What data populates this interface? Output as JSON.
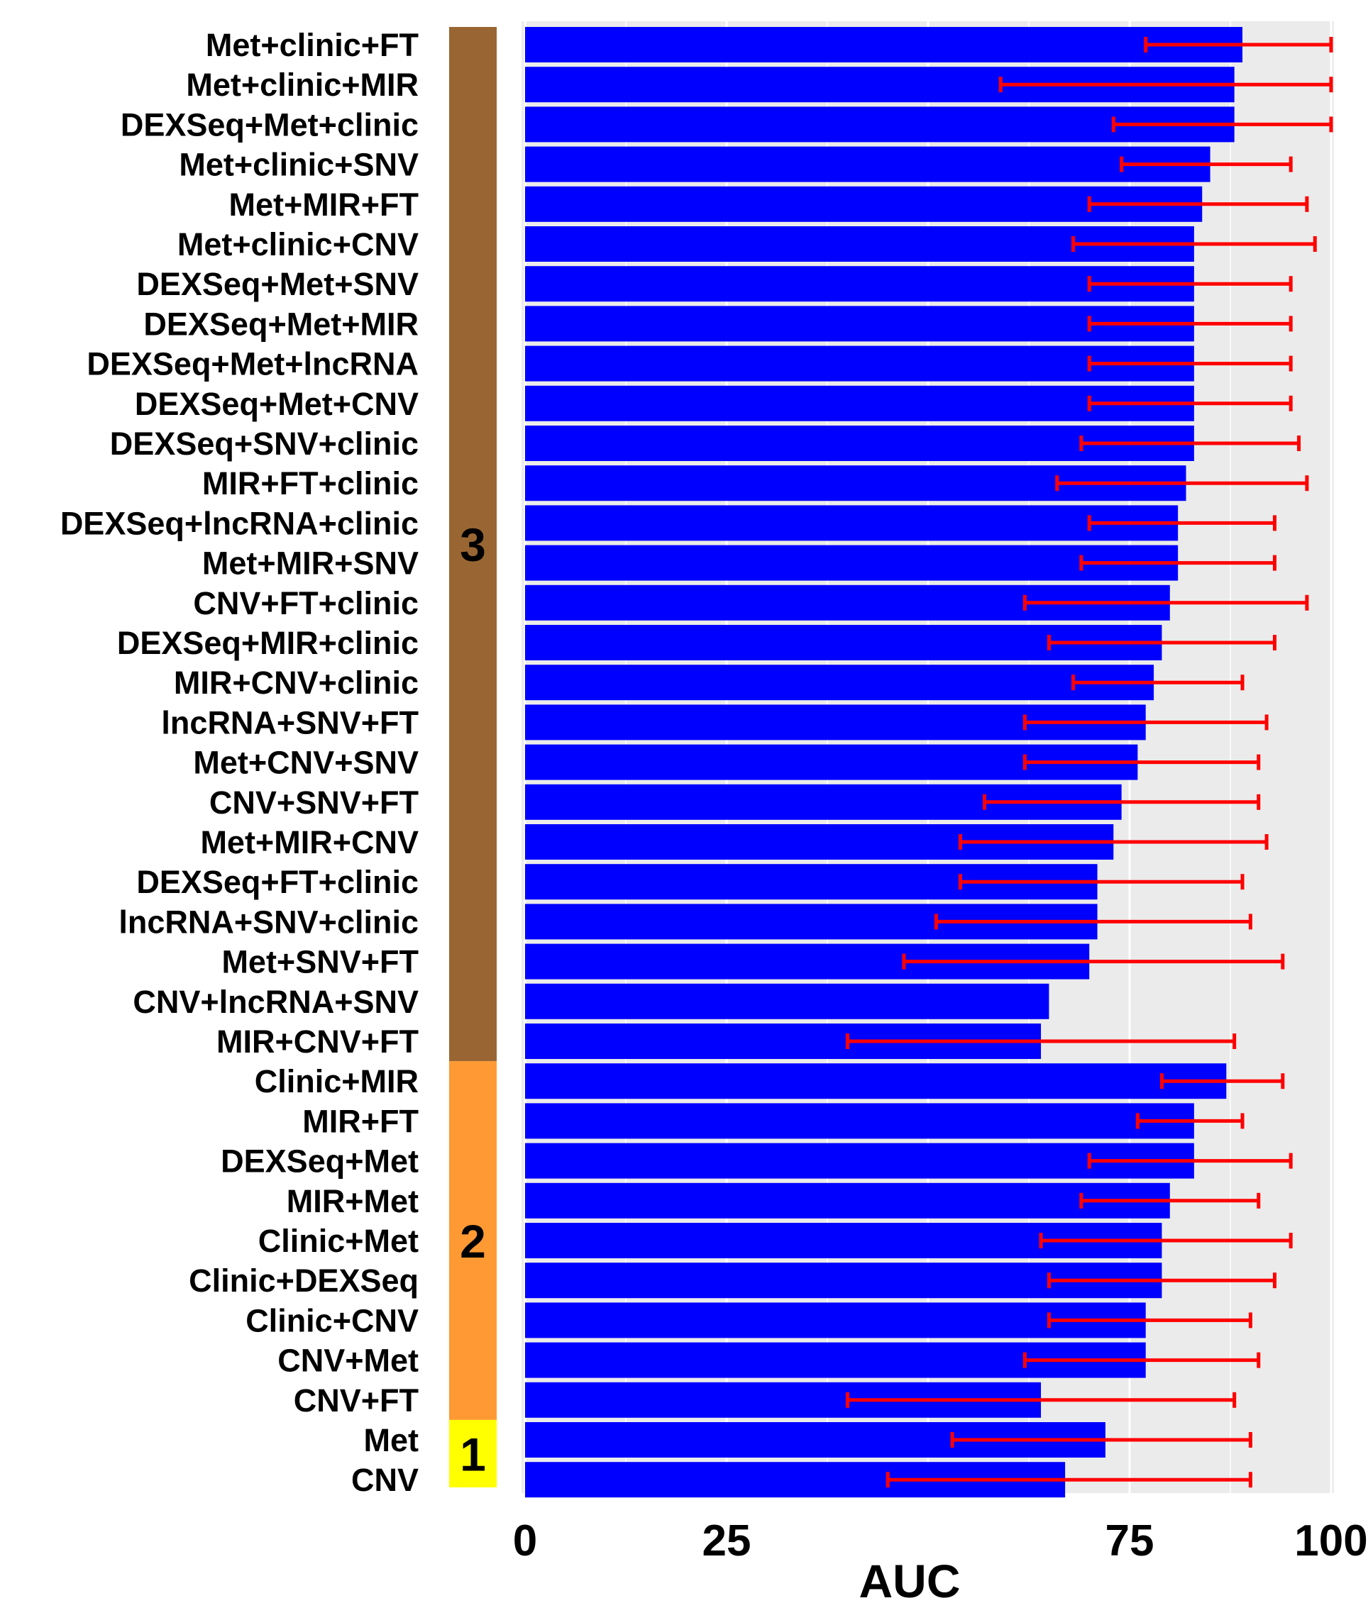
{
  "chart_data": {
    "type": "bar",
    "orientation": "horizontal",
    "title": "",
    "xlabel": "AUC",
    "ylabel": "",
    "xlim": [
      0,
      100
    ],
    "xticks": [
      {
        "value": 0,
        "label": "0"
      },
      {
        "value": 25,
        "label": "25"
      },
      {
        "value": 75,
        "label": "75"
      },
      {
        "value": 100,
        "label": "100"
      }
    ],
    "grid": true,
    "colors": {
      "bar": "#0000FF",
      "error": "#FF0000",
      "panel": "#EBEBEB",
      "grid": "#FFFFFF"
    },
    "groups": [
      {
        "label": "3",
        "color": "#996633",
        "count": 26
      },
      {
        "label": "2",
        "color": "#FF9933",
        "count": 9
      },
      {
        "label": "1",
        "color": "#FFFF00",
        "count": 2
      }
    ],
    "categories": [
      "Met+clinic+FT",
      "Met+clinic+MIR",
      "DEXSeq+Met+clinic",
      "Met+clinic+SNV",
      "Met+MIR+FT",
      "Met+clinic+CNV",
      "DEXSeq+Met+SNV",
      "DEXSeq+Met+MIR",
      "DEXSeq+Met+lncRNA",
      "DEXSeq+Met+CNV",
      "DEXSeq+SNV+clinic",
      "MIR+FT+clinic",
      "DEXSeq+lncRNA+clinic",
      "Met+MIR+SNV",
      "CNV+FT+clinic",
      "DEXSeq+MIR+clinic",
      "MIR+CNV+clinic",
      "lncRNA+SNV+FT",
      "Met+CNV+SNV",
      "CNV+SNV+FT",
      "Met+MIR+CNV",
      "DEXSeq+FT+clinic",
      "lncRNA+SNV+clinic",
      "Met+SNV+FT",
      "CNV+lncRNA+SNV",
      "MIR+CNV+FT",
      "Clinic+MIR",
      "MIR+FT",
      "DEXSeq+Met",
      "MIR+Met",
      "Clinic+Met",
      "Clinic+DEXSeq",
      "Clinic+CNV",
      "CNV+Met",
      "CNV+FT",
      "Met",
      "CNV"
    ],
    "values": [
      89,
      88,
      88,
      85,
      84,
      83,
      83,
      83,
      83,
      83,
      83,
      82,
      81,
      81,
      80,
      79,
      78,
      77,
      76,
      74,
      73,
      71,
      71,
      70,
      65,
      64,
      87,
      83,
      83,
      80,
      79,
      79,
      77,
      77,
      64,
      72,
      67
    ],
    "error_low": [
      77,
      59,
      73,
      74,
      70,
      68,
      70,
      70,
      70,
      70,
      69,
      66,
      70,
      69,
      62,
      65,
      68,
      62,
      62,
      57,
      54,
      54,
      51,
      47,
      null,
      40,
      79,
      76,
      70,
      69,
      64,
      65,
      65,
      62,
      40,
      53,
      45
    ],
    "error_high": [
      100,
      100,
      100,
      95,
      97,
      98,
      95,
      95,
      95,
      95,
      96,
      97,
      93,
      93,
      97,
      93,
      89,
      92,
      91,
      91,
      92,
      89,
      90,
      94,
      null,
      88,
      94,
      89,
      95,
      91,
      95,
      93,
      90,
      91,
      88,
      90,
      90
    ]
  }
}
